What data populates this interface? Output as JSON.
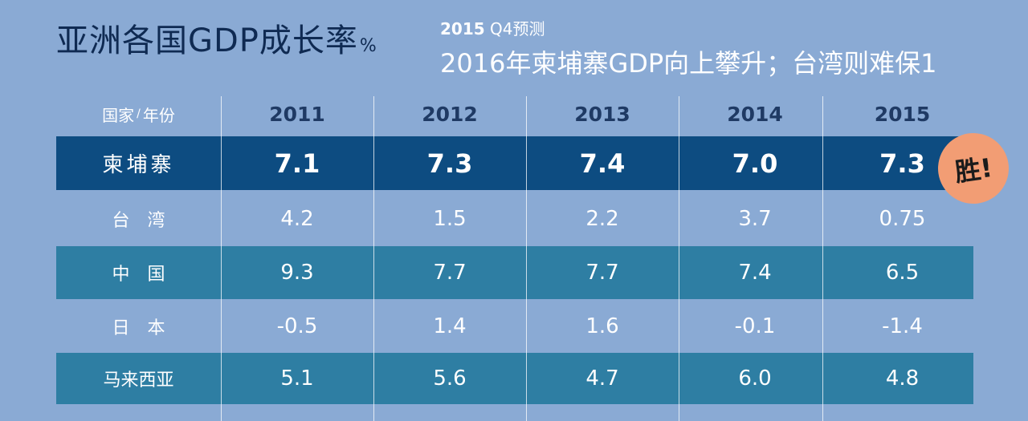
{
  "title": {
    "main": "亚洲各国GDP成长率",
    "unit": "%"
  },
  "subtitle": {
    "year": "2015",
    "forecast": "Q4预测",
    "headline": "2016年柬埔寨GDP向上攀升；台湾则难保1"
  },
  "badge": "胜!",
  "header": {
    "country": "国家",
    "separator": "/",
    "year": "年份"
  },
  "chart_data": {
    "type": "table",
    "title": "亚洲各国GDP成长率",
    "unit": "%",
    "columns": [
      "2011",
      "2012",
      "2013",
      "2014",
      "2015"
    ],
    "rows": [
      {
        "name": "柬埔寨",
        "values": [
          "7.1",
          "7.3",
          "7.4",
          "7.0",
          "7.3"
        ]
      },
      {
        "name": "台　湾",
        "values": [
          "4.2",
          "1.5",
          "2.2",
          "3.7",
          "0.75"
        ]
      },
      {
        "name": "中　国",
        "values": [
          "9.3",
          "7.7",
          "7.7",
          "7.4",
          "6.5"
        ]
      },
      {
        "name": "日　本",
        "values": [
          "-0.5",
          "1.4",
          "1.6",
          "-0.1",
          "-1.4"
        ]
      },
      {
        "name": "马来西亚",
        "values": [
          "5.1",
          "5.6",
          "4.7",
          "6.0",
          "4.8"
        ]
      }
    ]
  }
}
